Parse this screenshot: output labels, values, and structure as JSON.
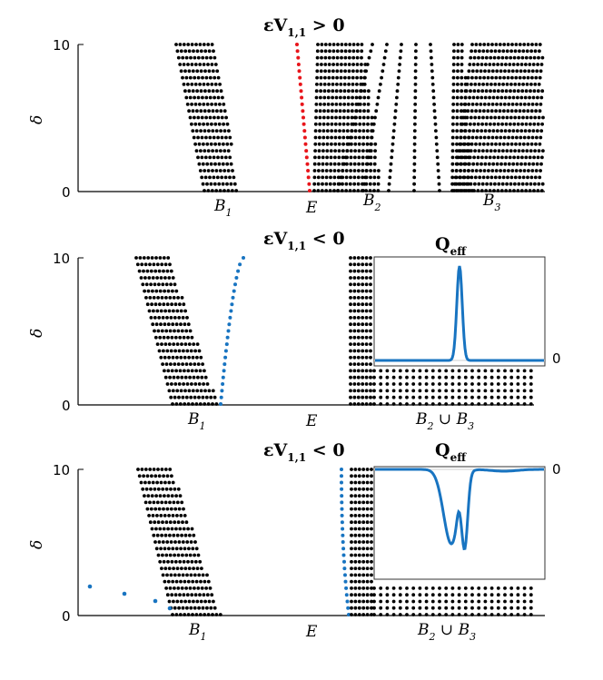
{
  "chart_data": [
    {
      "type": "scatter",
      "panel": "top",
      "title": "εV1,1 > 0",
      "title_prefix": "εV",
      "title_sub": "1,1",
      "title_suffix": " > 0",
      "ylabel": "δ",
      "ylim": [
        0,
        10
      ],
      "yticks": [
        "0",
        "10"
      ],
      "x_labels": [
        {
          "main": "B",
          "sub": "1"
        },
        {
          "main": "E",
          "sub": ""
        },
        {
          "main": "B",
          "sub": "2"
        },
        {
          "main": "B",
          "sub": "3"
        }
      ],
      "defect_color": "#e8151b",
      "series": [
        {
          "name": "band B1",
          "color": "#000000",
          "x_top": 0.2,
          "x_bottom": 0.26,
          "width": 0.06
        },
        {
          "name": "defect mode",
          "color": "#e8151b",
          "x_top": 0.445,
          "x_bottom": 0.485
        },
        {
          "name": "bands B2 and B3",
          "color": "#000000",
          "x_start": 0.5,
          "x_end": 0.98
        }
      ]
    },
    {
      "type": "scatter",
      "panel": "middle",
      "title_prefix": "εV",
      "title_sub": "1,1",
      "title_suffix": " < 0",
      "ylabel": "δ",
      "ylim": [
        0,
        10
      ],
      "yticks": [
        "0",
        "10"
      ],
      "x_labels": [
        {
          "main": "B",
          "sub": "1"
        },
        {
          "main": "E",
          "sub": ""
        },
        {
          "main": "B",
          "sub": "2",
          "join": " ∪ ",
          "main2": "B",
          "sub2": "3"
        }
      ],
      "defect_color": "#1874c1",
      "inset": {
        "title_main": "Q",
        "title_sub": "eff",
        "baseline_label": "0",
        "shape": "single peak"
      }
    },
    {
      "type": "scatter",
      "panel": "bottom",
      "title_prefix": "εV",
      "title_sub": "1,1",
      "title_suffix": " < 0",
      "ylabel": "δ",
      "ylim": [
        0,
        10
      ],
      "yticks": [
        "0",
        "10"
      ],
      "x_labels": [
        {
          "main": "B",
          "sub": "1"
        },
        {
          "main": "E",
          "sub": ""
        },
        {
          "main": "B",
          "sub": "2",
          "join": " ∪ ",
          "main2": "B",
          "sub2": "3"
        }
      ],
      "defect_color": "#1874c1",
      "inset": {
        "title_main": "Q",
        "title_sub": "eff",
        "baseline_label": "0",
        "shape": "double dip"
      }
    }
  ]
}
